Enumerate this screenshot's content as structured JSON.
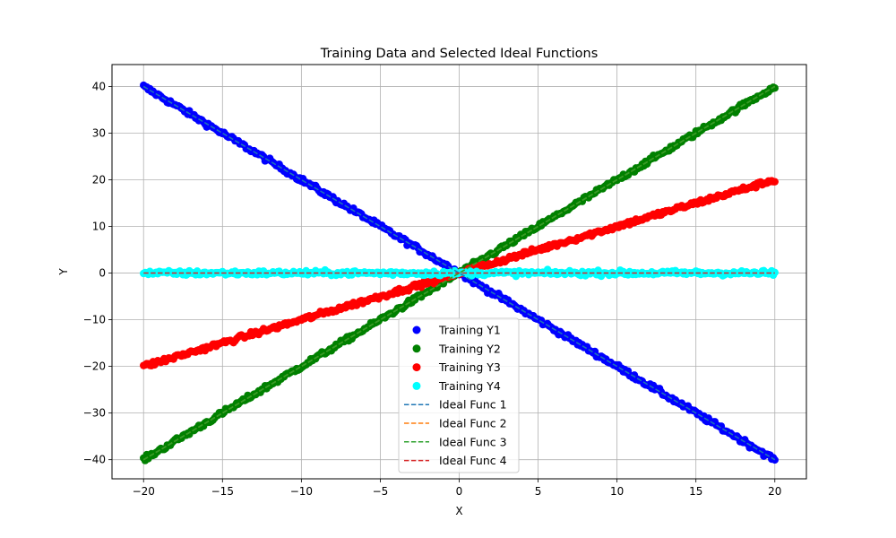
{
  "chart_data": {
    "type": "scatter",
    "title": "Training Data and Selected Ideal Functions",
    "xlabel": "X",
    "ylabel": "Y",
    "xlim": [
      -22,
      22
    ],
    "ylim": [
      -44.1,
      44.7
    ],
    "xticks": [
      -20,
      -15,
      -10,
      -5,
      0,
      5,
      10,
      15,
      20
    ],
    "yticks": [
      -40,
      -30,
      -20,
      -10,
      0,
      10,
      20,
      30,
      40
    ],
    "xtick_labels": [
      "−20",
      "−15",
      "−10",
      "−5",
      "0",
      "5",
      "10",
      "15",
      "20"
    ],
    "ytick_labels": [
      "−40",
      "−30",
      "−20",
      "−10",
      "0",
      "10",
      "20",
      "30",
      "40"
    ],
    "grid": true,
    "legend_position": "lower-center",
    "x_range": [
      -20,
      20
    ],
    "x_step": 0.1,
    "series": [
      {
        "name": "Training Y1",
        "kind": "scatter",
        "color": "#0000ff",
        "function": "y = -2x",
        "slope": -2,
        "noise": 0.5
      },
      {
        "name": "Training Y2",
        "kind": "scatter",
        "color": "#008000",
        "function": "y = 2x",
        "slope": 2,
        "noise": 0.5
      },
      {
        "name": "Training Y3",
        "kind": "scatter",
        "color": "#ff0000",
        "function": "y = x",
        "slope": 1,
        "noise": 0.5
      },
      {
        "name": "Training Y4",
        "kind": "scatter",
        "color": "#00ffff",
        "function": "y = 0",
        "slope": 0,
        "noise": 0.5
      },
      {
        "name": "Ideal Func 1",
        "kind": "line",
        "style": "dashed",
        "color": "#1f77b4",
        "function": "y = -2x",
        "slope": -2
      },
      {
        "name": "Ideal Func 2",
        "kind": "line",
        "style": "dashed",
        "color": "#ff7f0e",
        "function": "y = 2x",
        "slope": 2
      },
      {
        "name": "Ideal Func 3",
        "kind": "line",
        "style": "dashed",
        "color": "#2ca02c",
        "function": "y = 2x",
        "slope": 2
      },
      {
        "name": "Ideal Func 4",
        "kind": "line",
        "style": "dashed",
        "color": "#d62728",
        "function": "y = 0",
        "slope": 0
      }
    ]
  }
}
